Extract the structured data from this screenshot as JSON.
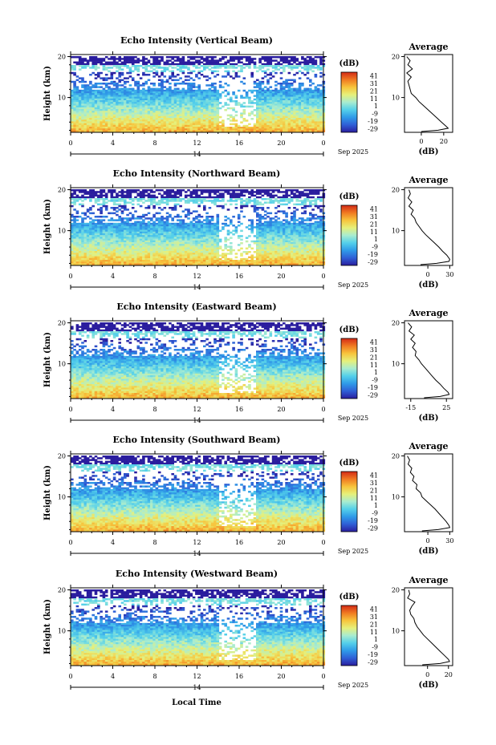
{
  "chart_data": {
    "type": "heatmap",
    "xlabel": "Local Time",
    "ylabel": "Height (km)",
    "date_label": "14",
    "month_year": "Sep 2025",
    "x_ticks": [
      "0",
      "4",
      "8",
      "12",
      "16",
      "20",
      "0"
    ],
    "x_range": [
      0,
      24
    ],
    "y_ticks": [
      "20",
      "10"
    ],
    "y_range": [
      1.5,
      20.5
    ],
    "colorbar": {
      "unit": "(dB)",
      "ticks": [
        "41",
        "31",
        "21",
        "11",
        "1",
        "-9",
        "-19",
        "-29"
      ],
      "range": [
        -34,
        46
      ],
      "colors": [
        "#2a1d9e",
        "#2f5fd6",
        "#2f9be8",
        "#54d0ea",
        "#a8ecd0",
        "#e6f07a",
        "#f7c43c",
        "#f07a22",
        "#d42a16"
      ]
    },
    "average_title": "Average",
    "average_xlabel": "(dB)",
    "panels": [
      {
        "title": "Echo Intensity (Vertical Beam)",
        "avg_ticks": [
          "0",
          "20"
        ],
        "avg_range": [
          -15,
          28
        ],
        "avg_profile": [
          [
            20,
            -13
          ],
          [
            19,
            -10
          ],
          [
            18,
            -12
          ],
          [
            17,
            -8
          ],
          [
            16,
            -13
          ],
          [
            15,
            -9
          ],
          [
            14,
            -12
          ],
          [
            13,
            -11
          ],
          [
            12,
            -10
          ],
          [
            11,
            -9
          ],
          [
            10,
            -5
          ],
          [
            9,
            -2
          ],
          [
            8,
            2
          ],
          [
            7,
            6
          ],
          [
            6,
            10
          ],
          [
            5,
            14
          ],
          [
            4,
            18
          ],
          [
            3,
            22
          ],
          [
            2.5,
            24
          ],
          [
            2,
            15
          ],
          [
            1.7,
            0
          ]
        ]
      },
      {
        "title": "Echo Intensity (Northward Beam)",
        "avg_ticks": [
          "0",
          "30"
        ],
        "avg_range": [
          -32,
          34
        ],
        "avg_profile": [
          [
            20,
            -26
          ],
          [
            19,
            -24
          ],
          [
            18,
            -27
          ],
          [
            17,
            -22
          ],
          [
            16,
            -26
          ],
          [
            15,
            -20
          ],
          [
            14,
            -23
          ],
          [
            13,
            -18
          ],
          [
            12,
            -16
          ],
          [
            11,
            -12
          ],
          [
            10,
            -8
          ],
          [
            9,
            -3
          ],
          [
            8,
            3
          ],
          [
            7,
            9
          ],
          [
            6,
            15
          ],
          [
            5,
            20
          ],
          [
            4,
            26
          ],
          [
            3,
            30
          ],
          [
            2.5,
            29
          ],
          [
            2,
            12
          ],
          [
            1.7,
            -10
          ]
        ]
      },
      {
        "title": "Echo Intensity (Eastward Beam)",
        "avg_ticks": [
          "-15",
          "25"
        ],
        "avg_range": [
          -22,
          32
        ],
        "avg_profile": [
          [
            20,
            -18
          ],
          [
            19,
            -14
          ],
          [
            18,
            -17
          ],
          [
            17,
            -11
          ],
          [
            16,
            -15
          ],
          [
            15,
            -10
          ],
          [
            14,
            -13
          ],
          [
            13,
            -9
          ],
          [
            12,
            -10
          ],
          [
            11,
            -6
          ],
          [
            10,
            -3
          ],
          [
            9,
            1
          ],
          [
            8,
            5
          ],
          [
            7,
            9
          ],
          [
            6,
            13
          ],
          [
            5,
            18
          ],
          [
            4,
            22
          ],
          [
            3,
            27
          ],
          [
            2.5,
            28
          ],
          [
            2,
            18
          ],
          [
            1.7,
            0
          ]
        ]
      },
      {
        "title": "Echo Intensity (Southward Beam)",
        "avg_ticks": [
          "0",
          "30"
        ],
        "avg_range": [
          -32,
          34
        ],
        "avg_profile": [
          [
            20,
            -28
          ],
          [
            19,
            -25
          ],
          [
            18,
            -27
          ],
          [
            17,
            -22
          ],
          [
            16,
            -24
          ],
          [
            15,
            -19
          ],
          [
            14,
            -21
          ],
          [
            13,
            -15
          ],
          [
            12,
            -16
          ],
          [
            11,
            -10
          ],
          [
            10,
            -8
          ],
          [
            9,
            -2
          ],
          [
            8,
            4
          ],
          [
            7,
            10
          ],
          [
            6,
            15
          ],
          [
            5,
            20
          ],
          [
            4,
            25
          ],
          [
            3,
            29
          ],
          [
            2.5,
            30
          ],
          [
            2,
            14
          ],
          [
            1.7,
            -8
          ]
        ]
      },
      {
        "title": "Echo Intensity (Westward Beam)",
        "avg_ticks": [
          "0",
          "20"
        ],
        "avg_range": [
          -22,
          24
        ],
        "avg_profile": [
          [
            20,
            -18
          ],
          [
            19,
            -17
          ],
          [
            18,
            -19
          ],
          [
            17,
            -12
          ],
          [
            16,
            -15
          ],
          [
            15,
            -17
          ],
          [
            14,
            -16
          ],
          [
            13,
            -13
          ],
          [
            12,
            -12
          ],
          [
            11,
            -10
          ],
          [
            10,
            -7
          ],
          [
            9,
            -4
          ],
          [
            8,
            0
          ],
          [
            7,
            4
          ],
          [
            6,
            8
          ],
          [
            5,
            12
          ],
          [
            4,
            16
          ],
          [
            3,
            20
          ],
          [
            2.5,
            21
          ],
          [
            2,
            12
          ],
          [
            1.7,
            -5
          ]
        ]
      }
    ]
  }
}
